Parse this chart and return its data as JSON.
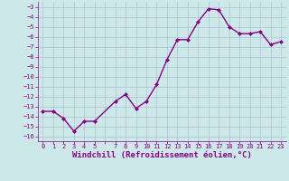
{
  "x": [
    0,
    1,
    2,
    3,
    4,
    5,
    7,
    8,
    9,
    10,
    11,
    12,
    13,
    14,
    15,
    16,
    17,
    18,
    19,
    20,
    21,
    22,
    23
  ],
  "y": [
    -13.5,
    -13.5,
    -14.2,
    -15.5,
    -14.5,
    -14.5,
    -12.5,
    -11.8,
    -13.2,
    -12.5,
    -10.8,
    -8.3,
    -6.3,
    -6.3,
    -4.5,
    -3.2,
    -3.3,
    -5.0,
    -5.7,
    -5.7,
    -5.5,
    -6.8,
    -6.5
  ],
  "line_color": "#880088",
  "marker": "D",
  "markersize": 2.0,
  "linewidth": 1.0,
  "xlabel": "Windchill (Refroidissement éolien,°C)",
  "xlabel_fontsize": 6.5,
  "ylim": [
    -16.5,
    -2.5
  ],
  "yticks": [
    -3,
    -4,
    -5,
    -6,
    -7,
    -8,
    -9,
    -10,
    -11,
    -12,
    -13,
    -14,
    -15,
    -16
  ],
  "xtick_labels": [
    "0",
    "1",
    "2",
    "3",
    "4",
    "5",
    "",
    "7",
    "8",
    "9",
    "10",
    "11",
    "12",
    "13",
    "14",
    "15",
    "16",
    "17",
    "18",
    "19",
    "20",
    "21",
    "22",
    "23"
  ],
  "xtick_positions": [
    0,
    1,
    2,
    3,
    4,
    5,
    6,
    7,
    8,
    9,
    10,
    11,
    12,
    13,
    14,
    15,
    16,
    17,
    18,
    19,
    20,
    21,
    22,
    23
  ],
  "bg_color": "#cce8e8",
  "grid_color": "#aab8cc",
  "tick_color": "#880088",
  "tick_fontsize": 5.0,
  "xlabel_fontweight": "bold"
}
